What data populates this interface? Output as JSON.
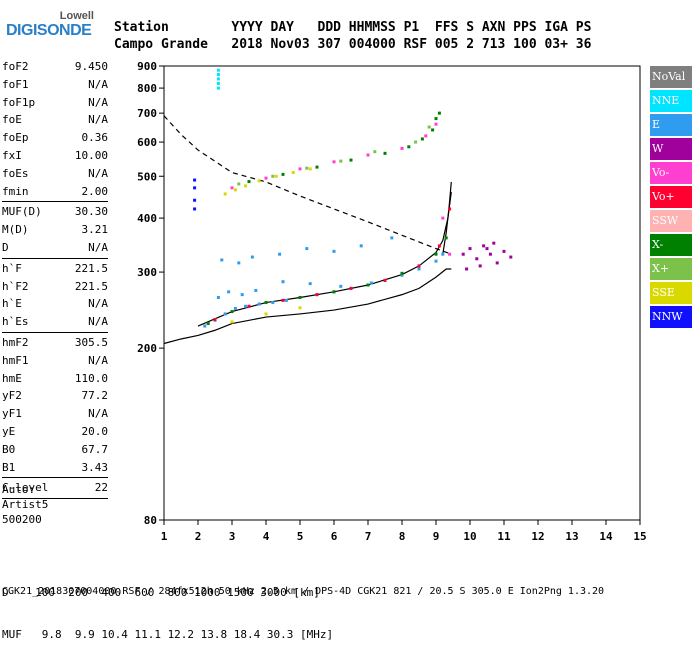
{
  "logo": {
    "top": "Lowell",
    "main": "DIGISONDE"
  },
  "header": {
    "labels": "Station        YYYY DAY   DDD HHMMSS P1  FFS S AXN PPS IGA PS",
    "values": "Campo Grande   2018 Nov03 307 004000 RSF 005 2 713 100 03+ 36"
  },
  "params": [
    {
      "name": "foF2",
      "value": "9.450"
    },
    {
      "name": "foF1",
      "value": "N/A"
    },
    {
      "name": "foF1p",
      "value": "N/A"
    },
    {
      "name": "foE",
      "value": "N/A"
    },
    {
      "name": "foEp",
      "value": "0.36"
    },
    {
      "name": "fxI",
      "value": "10.00"
    },
    {
      "name": "foEs",
      "value": "N/A"
    },
    {
      "name": "fmin",
      "value": "2.00"
    },
    {
      "sep": true
    },
    {
      "name": "MUF(D)",
      "value": "30.30"
    },
    {
      "name": "M(D)",
      "value": "3.21"
    },
    {
      "name": "D",
      "value": "N/A"
    },
    {
      "sep": true
    },
    {
      "name": "h`F",
      "value": "221.5"
    },
    {
      "name": "h`F2",
      "value": "221.5"
    },
    {
      "name": "h`E",
      "value": "N/A"
    },
    {
      "name": "h`Es",
      "value": "N/A"
    },
    {
      "sep": true
    },
    {
      "name": "hmF2",
      "value": "305.5"
    },
    {
      "name": "hmF1",
      "value": "N/A"
    },
    {
      "name": "hmE",
      "value": "110.0"
    },
    {
      "name": "yF2",
      "value": "77.2"
    },
    {
      "name": "yF1",
      "value": "N/A"
    },
    {
      "name": "yE",
      "value": "20.0"
    },
    {
      "name": "B0",
      "value": "67.7"
    },
    {
      "name": "B1",
      "value": "3.43"
    },
    {
      "sep": true
    },
    {
      "name": "C-level",
      "value": "22"
    },
    {
      "sep": true
    }
  ],
  "auto": {
    "line1": "Auto:",
    "line2": "Artist5",
    "line3": "500200"
  },
  "legend": [
    {
      "label": "NoVal",
      "color": "#7f7f7f"
    },
    {
      "label": "NNE",
      "color": "#00e5ff"
    },
    {
      "label": "E",
      "color": "#2f9cf0"
    },
    {
      "label": "W",
      "color": "#a0009c"
    },
    {
      "label": "Vo-",
      "color": "#ff3fd0"
    },
    {
      "label": "Vo+",
      "color": "#ff0030"
    },
    {
      "label": "SSW",
      "color": "#ffb2b2"
    },
    {
      "label": "X-",
      "color": "#008000"
    },
    {
      "label": "X+",
      "color": "#7cc24a"
    },
    {
      "label": "SSE",
      "color": "#d9d900"
    },
    {
      "label": "NNW",
      "color": "#1010ff"
    }
  ],
  "muf_summary": {
    "line1": "D    100  200  400  600  800 1000 1500 3000 [km]",
    "line2": "MUF   9.8  9.9 10.4 11.1 12.2 13.8 18.4 30.3 [MHz]"
  },
  "footer": "CGK21_2018307004000.RSF / 284fx512h 50 kHz 2.5 km / DPS-4D CGK21 821 / 20.5 S 305.0 E Ion2Png 1.3.20",
  "chart_data": {
    "type": "scatter",
    "xlim": [
      1,
      15
    ],
    "ylim": [
      80,
      900
    ],
    "x_ticks": [
      1,
      2,
      3,
      4,
      5,
      6,
      7,
      8,
      9,
      10,
      11,
      12,
      13,
      14,
      15
    ],
    "y_ticks": [
      80,
      200,
      300,
      400,
      500,
      600,
      700,
      800,
      900
    ],
    "y_scale": "log",
    "series": [
      {
        "name": "E",
        "color": "#2f9cf0",
        "x": [
          2.2,
          2.5,
          2.8,
          3.1,
          3.4,
          3.8,
          4.2,
          4.6,
          5.0,
          5.5,
          6.0,
          6.5,
          7.0,
          7.5,
          8.0,
          8.5,
          9.0,
          9.2,
          2.6,
          2.9,
          3.3,
          3.7,
          4.5,
          5.3,
          6.2,
          7.1,
          2.7,
          3.2,
          3.6,
          4.4,
          5.2,
          6.0,
          6.8,
          7.7
        ],
        "y": [
          225,
          232,
          240,
          247,
          250,
          253,
          255,
          258,
          262,
          266,
          270,
          275,
          280,
          287,
          295,
          305,
          318,
          330,
          262,
          270,
          266,
          272,
          285,
          282,
          278,
          283,
          320,
          315,
          325,
          330,
          340,
          335,
          345,
          360
        ]
      },
      {
        "name": "X-",
        "color": "#008000",
        "x": [
          2.3,
          3.0,
          4.0,
          5.0,
          6.0,
          7.0,
          8.0,
          8.5,
          9.0,
          9.3,
          3.5,
          4.5,
          5.5,
          6.5,
          7.5,
          8.2,
          8.6,
          8.9,
          9.0,
          9.1
        ],
        "y": [
          228,
          243,
          255,
          262,
          270,
          280,
          298,
          310,
          330,
          360,
          486,
          505,
          525,
          545,
          565,
          585,
          610,
          640,
          680,
          700
        ]
      },
      {
        "name": "X+",
        "color": "#7cc24a",
        "x": [
          3.2,
          4.2,
          5.2,
          6.2,
          7.2,
          8.4,
          8.8
        ],
        "y": [
          480,
          500,
          522,
          542,
          570,
          600,
          650
        ]
      },
      {
        "name": "SSE",
        "color": "#d9d900",
        "x": [
          2.8,
          3.1,
          3.4,
          3.8,
          4.3,
          4.8,
          5.3,
          3.0,
          4.0,
          5.0
        ],
        "y": [
          455,
          465,
          475,
          488,
          500,
          510,
          520,
          230,
          240,
          248
        ]
      },
      {
        "name": "Vo-",
        "color": "#ff3fd0",
        "x": [
          3.0,
          4.0,
          5.0,
          6.0,
          7.0,
          8.0,
          8.7,
          9.0,
          9.2,
          9.4
        ],
        "y": [
          470,
          495,
          520,
          540,
          560,
          580,
          620,
          660,
          400,
          330
        ]
      },
      {
        "name": "Vo+",
        "color": "#ff0030",
        "x": [
          2.5,
          3.5,
          4.5,
          5.5,
          6.5,
          7.5,
          8.5,
          9.1,
          9.4
        ],
        "y": [
          233,
          250,
          258,
          266,
          275,
          287,
          310,
          345,
          420
        ]
      },
      {
        "name": "W",
        "color": "#a0009c",
        "x": [
          9.8,
          10.0,
          10.2,
          10.4,
          10.6,
          10.8,
          11.0,
          11.2,
          10.3,
          10.7,
          9.9,
          10.5
        ],
        "y": [
          330,
          340,
          322,
          345,
          330,
          315,
          335,
          325,
          310,
          350,
          305,
          340
        ]
      },
      {
        "name": "NNE",
        "color": "#00e5ff",
        "x": [
          2.6,
          2.6,
          2.6,
          2.6,
          2.6
        ],
        "y": [
          800,
          820,
          840,
          860,
          880
        ]
      },
      {
        "name": "NNW",
        "color": "#1010ff",
        "x": [
          1.9,
          1.9,
          1.9,
          1.9
        ],
        "y": [
          420,
          440,
          470,
          490
        ]
      }
    ],
    "lines": [
      {
        "name": "profile",
        "style": "solid",
        "x": [
          1.0,
          1.5,
          2.0,
          2.5,
          3.0,
          4.0,
          5.0,
          6.0,
          7.0,
          8.0,
          8.5,
          9.0,
          9.3,
          9.45
        ],
        "y": [
          205,
          210,
          214,
          220,
          228,
          236,
          240,
          245,
          253,
          266,
          275,
          292,
          305,
          305
        ]
      },
      {
        "name": "profile-upper",
        "style": "solid",
        "x": [
          9.2,
          9.3,
          9.38,
          9.45
        ],
        "y": [
          330,
          370,
          420,
          485
        ]
      },
      {
        "name": "trace-fit",
        "style": "solid",
        "x": [
          2.0,
          3.0,
          4.0,
          5.0,
          6.0,
          7.0,
          8.0,
          8.5,
          9.0,
          9.2,
          9.35,
          9.45
        ],
        "y": [
          225,
          243,
          255,
          262,
          270,
          280,
          296,
          310,
          333,
          355,
          400,
          460
        ]
      },
      {
        "name": "muf-curve",
        "style": "dashed",
        "x": [
          1.0,
          1.5,
          2.0,
          3.0,
          4.0,
          5.0,
          6.0,
          7.0,
          8.0,
          9.0,
          9.45
        ],
        "y": [
          690,
          625,
          575,
          510,
          485,
          450,
          420,
          392,
          365,
          340,
          330
        ]
      }
    ]
  }
}
